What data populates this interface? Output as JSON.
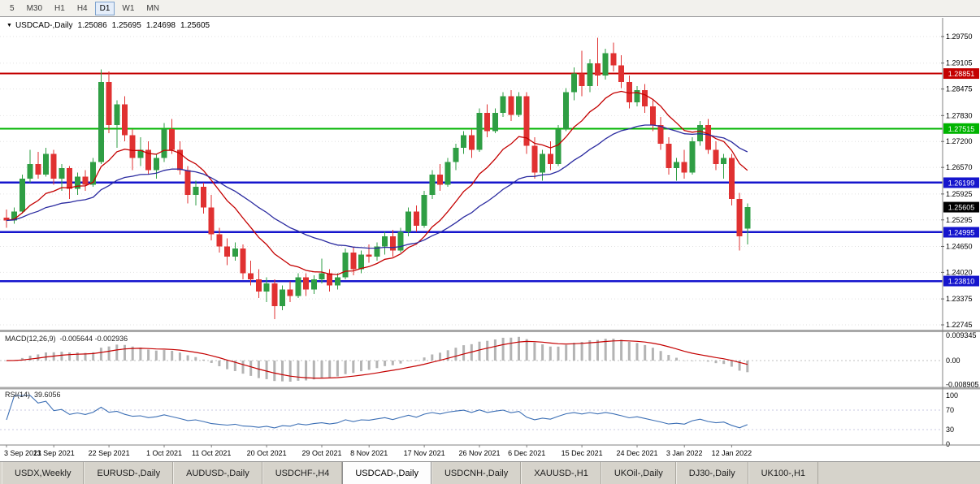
{
  "toolbar": {
    "timeframes": [
      "5",
      "M30",
      "H1",
      "H4",
      "D1",
      "W1",
      "MN"
    ],
    "active": "D1"
  },
  "chart": {
    "symbol_marker": "▼",
    "title": "USDCAD-,Daily",
    "quote": {
      "open": "1.25086",
      "high": "1.25695",
      "low": "1.24698",
      "close": "1.25605"
    },
    "price_axis": {
      "ticks": [
        "1.29750",
        "1.29105",
        "1.28475",
        "1.27830",
        "1.27200",
        "1.26570",
        "1.25925",
        "1.25295",
        "1.24650",
        "1.24020",
        "1.23375",
        "1.22745"
      ]
    },
    "levels": [
      {
        "price": 1.28851,
        "label": "1.28851",
        "color": "#c40000",
        "width": 2
      },
      {
        "price": 1.27515,
        "label": "1.27515",
        "color": "#00b400",
        "width": 2
      },
      {
        "price": 1.26199,
        "label": "1.26199",
        "color": "#1515cd",
        "width": 2.5
      },
      {
        "price": 1.24995,
        "label": "1.24995",
        "color": "#1515cd",
        "width": 2.5
      },
      {
        "price": 1.2381,
        "label": "1.23810",
        "color": "#1515cd",
        "width": 2.5
      }
    ],
    "current_price_badge": {
      "label": "1.25605",
      "price": 1.25605,
      "bg": "#000000",
      "fg": "#ffffff"
    },
    "colors": {
      "bull": "#2f9e44",
      "bear": "#e03131",
      "grid": "#e2e2e2",
      "axis_text": "#000000"
    }
  },
  "chart_data": {
    "type": "candlestick",
    "symbol": "USDCAD",
    "timeframe": "Daily",
    "ylim": {
      "top": 1.30204,
      "bottom": 1.22627
    },
    "x_axis": {
      "tick_indices": [
        0,
        6,
        13,
        20,
        26,
        33,
        40,
        46,
        53,
        60,
        66,
        73,
        80,
        86,
        92
      ],
      "tick_labels": [
        "3 Sep 2021",
        "13 Sep 2021",
        "22 Sep 2021",
        "1 Oct 2021",
        "11 Oct 2021",
        "20 Oct 2021",
        "29 Oct 2021",
        "8 Nov 2021",
        "17 Nov 2021",
        "26 Nov 2021",
        "6 Dec 2021",
        "15 Dec 2021",
        "24 Dec 2021",
        "3 Jan 2022",
        "12 Jan 2022"
      ]
    },
    "overlays": [
      {
        "name": "ma-fast",
        "method": "ema",
        "period": 12,
        "color": "#c40000"
      },
      {
        "name": "ma-slow",
        "method": "ema",
        "period": 30,
        "color": "#2b2ba0"
      }
    ],
    "candles": [
      [
        1.2535,
        1.2555,
        1.251,
        1.2528
      ],
      [
        1.2528,
        1.256,
        1.252,
        1.255
      ],
      [
        1.255,
        1.264,
        1.2545,
        1.263
      ],
      [
        1.263,
        1.27,
        1.262,
        1.2665
      ],
      [
        1.2665,
        1.2695,
        1.263,
        1.264
      ],
      [
        1.264,
        1.2705,
        1.2635,
        1.269
      ],
      [
        1.269,
        1.27,
        1.2615,
        1.263
      ],
      [
        1.263,
        1.2665,
        1.26,
        1.2655
      ],
      [
        1.2655,
        1.266,
        1.258,
        1.2605
      ],
      [
        1.2605,
        1.2645,
        1.259,
        1.2635
      ],
      [
        1.2635,
        1.265,
        1.26,
        1.2615
      ],
      [
        1.2615,
        1.268,
        1.261,
        1.267
      ],
      [
        1.267,
        1.2895,
        1.2665,
        1.2865
      ],
      [
        1.2865,
        1.289,
        1.274,
        1.276
      ],
      [
        1.276,
        1.282,
        1.2705,
        1.281
      ],
      [
        1.281,
        1.283,
        1.272,
        1.2735
      ],
      [
        1.2735,
        1.275,
        1.265,
        1.268
      ],
      [
        1.268,
        1.273,
        1.266,
        1.27
      ],
      [
        1.27,
        1.272,
        1.264,
        1.265
      ],
      [
        1.265,
        1.269,
        1.263,
        1.268
      ],
      [
        1.268,
        1.2765,
        1.267,
        1.275
      ],
      [
        1.275,
        1.2775,
        1.269,
        1.27
      ],
      [
        1.27,
        1.272,
        1.264,
        1.265
      ],
      [
        1.265,
        1.266,
        1.257,
        1.259
      ],
      [
        1.259,
        1.2625,
        1.2565,
        1.261
      ],
      [
        1.261,
        1.262,
        1.2545,
        1.256
      ],
      [
        1.256,
        1.259,
        1.248,
        1.2495
      ],
      [
        1.2495,
        1.251,
        1.245,
        1.2465
      ],
      [
        1.2465,
        1.2485,
        1.242,
        1.244
      ],
      [
        1.244,
        1.2475,
        1.243,
        1.246
      ],
      [
        1.246,
        1.247,
        1.2385,
        1.24
      ],
      [
        1.24,
        1.243,
        1.237,
        1.2385
      ],
      [
        1.2385,
        1.241,
        1.234,
        1.2355
      ],
      [
        1.2355,
        1.239,
        1.233,
        1.2375
      ],
      [
        1.2375,
        1.2385,
        1.2288,
        1.232
      ],
      [
        1.232,
        1.237,
        1.231,
        1.236
      ],
      [
        1.236,
        1.238,
        1.233,
        1.2345
      ],
      [
        1.2345,
        1.24,
        1.234,
        1.239
      ],
      [
        1.239,
        1.24,
        1.2345,
        1.236
      ],
      [
        1.236,
        1.2395,
        1.235,
        1.2385
      ],
      [
        1.2385,
        1.2435,
        1.2375,
        1.24
      ],
      [
        1.24,
        1.241,
        1.2355,
        1.237
      ],
      [
        1.237,
        1.24,
        1.236,
        1.239
      ],
      [
        1.239,
        1.246,
        1.2385,
        1.245
      ],
      [
        1.245,
        1.2465,
        1.2395,
        1.241
      ],
      [
        1.241,
        1.2455,
        1.24,
        1.2445
      ],
      [
        1.2445,
        1.247,
        1.2425,
        1.244
      ],
      [
        1.244,
        1.2475,
        1.243,
        1.2465
      ],
      [
        1.2465,
        1.25,
        1.2445,
        1.249
      ],
      [
        1.249,
        1.2505,
        1.244,
        1.2455
      ],
      [
        1.2455,
        1.251,
        1.245,
        1.25
      ],
      [
        1.25,
        1.256,
        1.249,
        1.255
      ],
      [
        1.255,
        1.2565,
        1.25,
        1.2515
      ],
      [
        1.2515,
        1.26,
        1.251,
        1.259
      ],
      [
        1.259,
        1.265,
        1.258,
        1.264
      ],
      [
        1.264,
        1.2665,
        1.26,
        1.2615
      ],
      [
        1.2615,
        1.268,
        1.261,
        1.267
      ],
      [
        1.267,
        1.2715,
        1.265,
        1.2705
      ],
      [
        1.2705,
        1.2745,
        1.269,
        1.2735
      ],
      [
        1.2735,
        1.275,
        1.268,
        1.27
      ],
      [
        1.27,
        1.28,
        1.2695,
        1.279
      ],
      [
        1.279,
        1.281,
        1.273,
        1.2745
      ],
      [
        1.2745,
        1.28,
        1.274,
        1.279
      ],
      [
        1.279,
        1.284,
        1.278,
        1.283
      ],
      [
        1.283,
        1.2845,
        1.277,
        1.2785
      ],
      [
        1.2785,
        1.284,
        1.278,
        1.283
      ],
      [
        1.283,
        1.284,
        1.269,
        1.271
      ],
      [
        1.271,
        1.273,
        1.263,
        1.2645
      ],
      [
        1.2645,
        1.27,
        1.2625,
        1.269
      ],
      [
        1.269,
        1.272,
        1.265,
        1.2665
      ],
      [
        1.2665,
        1.276,
        1.266,
        1.275
      ],
      [
        1.275,
        1.285,
        1.2745,
        1.284
      ],
      [
        1.284,
        1.29,
        1.282,
        1.2885
      ],
      [
        1.2885,
        1.294,
        1.283,
        1.2855
      ],
      [
        1.2855,
        1.292,
        1.284,
        1.291
      ],
      [
        1.291,
        1.2972,
        1.2855,
        1.288
      ],
      [
        1.288,
        1.2945,
        1.287,
        1.2935
      ],
      [
        1.2935,
        1.296,
        1.289,
        1.2905
      ],
      [
        1.2905,
        1.293,
        1.285,
        1.2865
      ],
      [
        1.2865,
        1.288,
        1.28,
        1.2815
      ],
      [
        1.2815,
        1.2855,
        1.2805,
        1.2845
      ],
      [
        1.2845,
        1.286,
        1.279,
        1.2805
      ],
      [
        1.2805,
        1.282,
        1.2745,
        1.276
      ],
      [
        1.276,
        1.278,
        1.27,
        1.2715
      ],
      [
        1.2715,
        1.273,
        1.264,
        1.2655
      ],
      [
        1.2655,
        1.268,
        1.2625,
        1.267
      ],
      [
        1.267,
        1.27,
        1.263,
        1.2645
      ],
      [
        1.2645,
        1.273,
        1.264,
        1.272
      ],
      [
        1.272,
        1.277,
        1.271,
        1.276
      ],
      [
        1.276,
        1.2775,
        1.269,
        1.27
      ],
      [
        1.27,
        1.272,
        1.265,
        1.2665
      ],
      [
        1.2665,
        1.269,
        1.263,
        1.268
      ],
      [
        1.268,
        1.269,
        1.2565,
        1.258
      ],
      [
        1.258,
        1.2595,
        1.2455,
        1.249
      ],
      [
        1.25086,
        1.25695,
        1.24698,
        1.25605
      ]
    ]
  },
  "macd": {
    "title": "MACD(12,26,9)",
    "values_text": "-0.005644 -0.002936",
    "axis_ticks": [
      "0.009345",
      "0.00",
      "-0.008905"
    ],
    "ylim": {
      "top": 0.0103,
      "bottom": -0.0091
    },
    "params": {
      "fast": 12,
      "slow": 26,
      "signal": 9
    },
    "colors": {
      "histogram": "#b4b4b4",
      "signal": "#c40000"
    }
  },
  "rsi": {
    "title": "RSI(14)",
    "value_text": "39.6056",
    "axis_ticks": [
      "100",
      "70",
      "30",
      "0"
    ],
    "period": 14,
    "levels": [
      70,
      30
    ],
    "color": "#3c6fb5"
  },
  "tabs": {
    "items": [
      "USDX,Weekly",
      "EURUSD-,Daily",
      "AUDUSD-,Daily",
      "USDCHF-,H4",
      "USDCAD-,Daily",
      "USDCNH-,Daily",
      "XAUUSD-,H1",
      "UKOil-,Daily",
      "DJ30-,Daily",
      "UK100-,H1"
    ],
    "active": "USDCAD-,Daily"
  }
}
